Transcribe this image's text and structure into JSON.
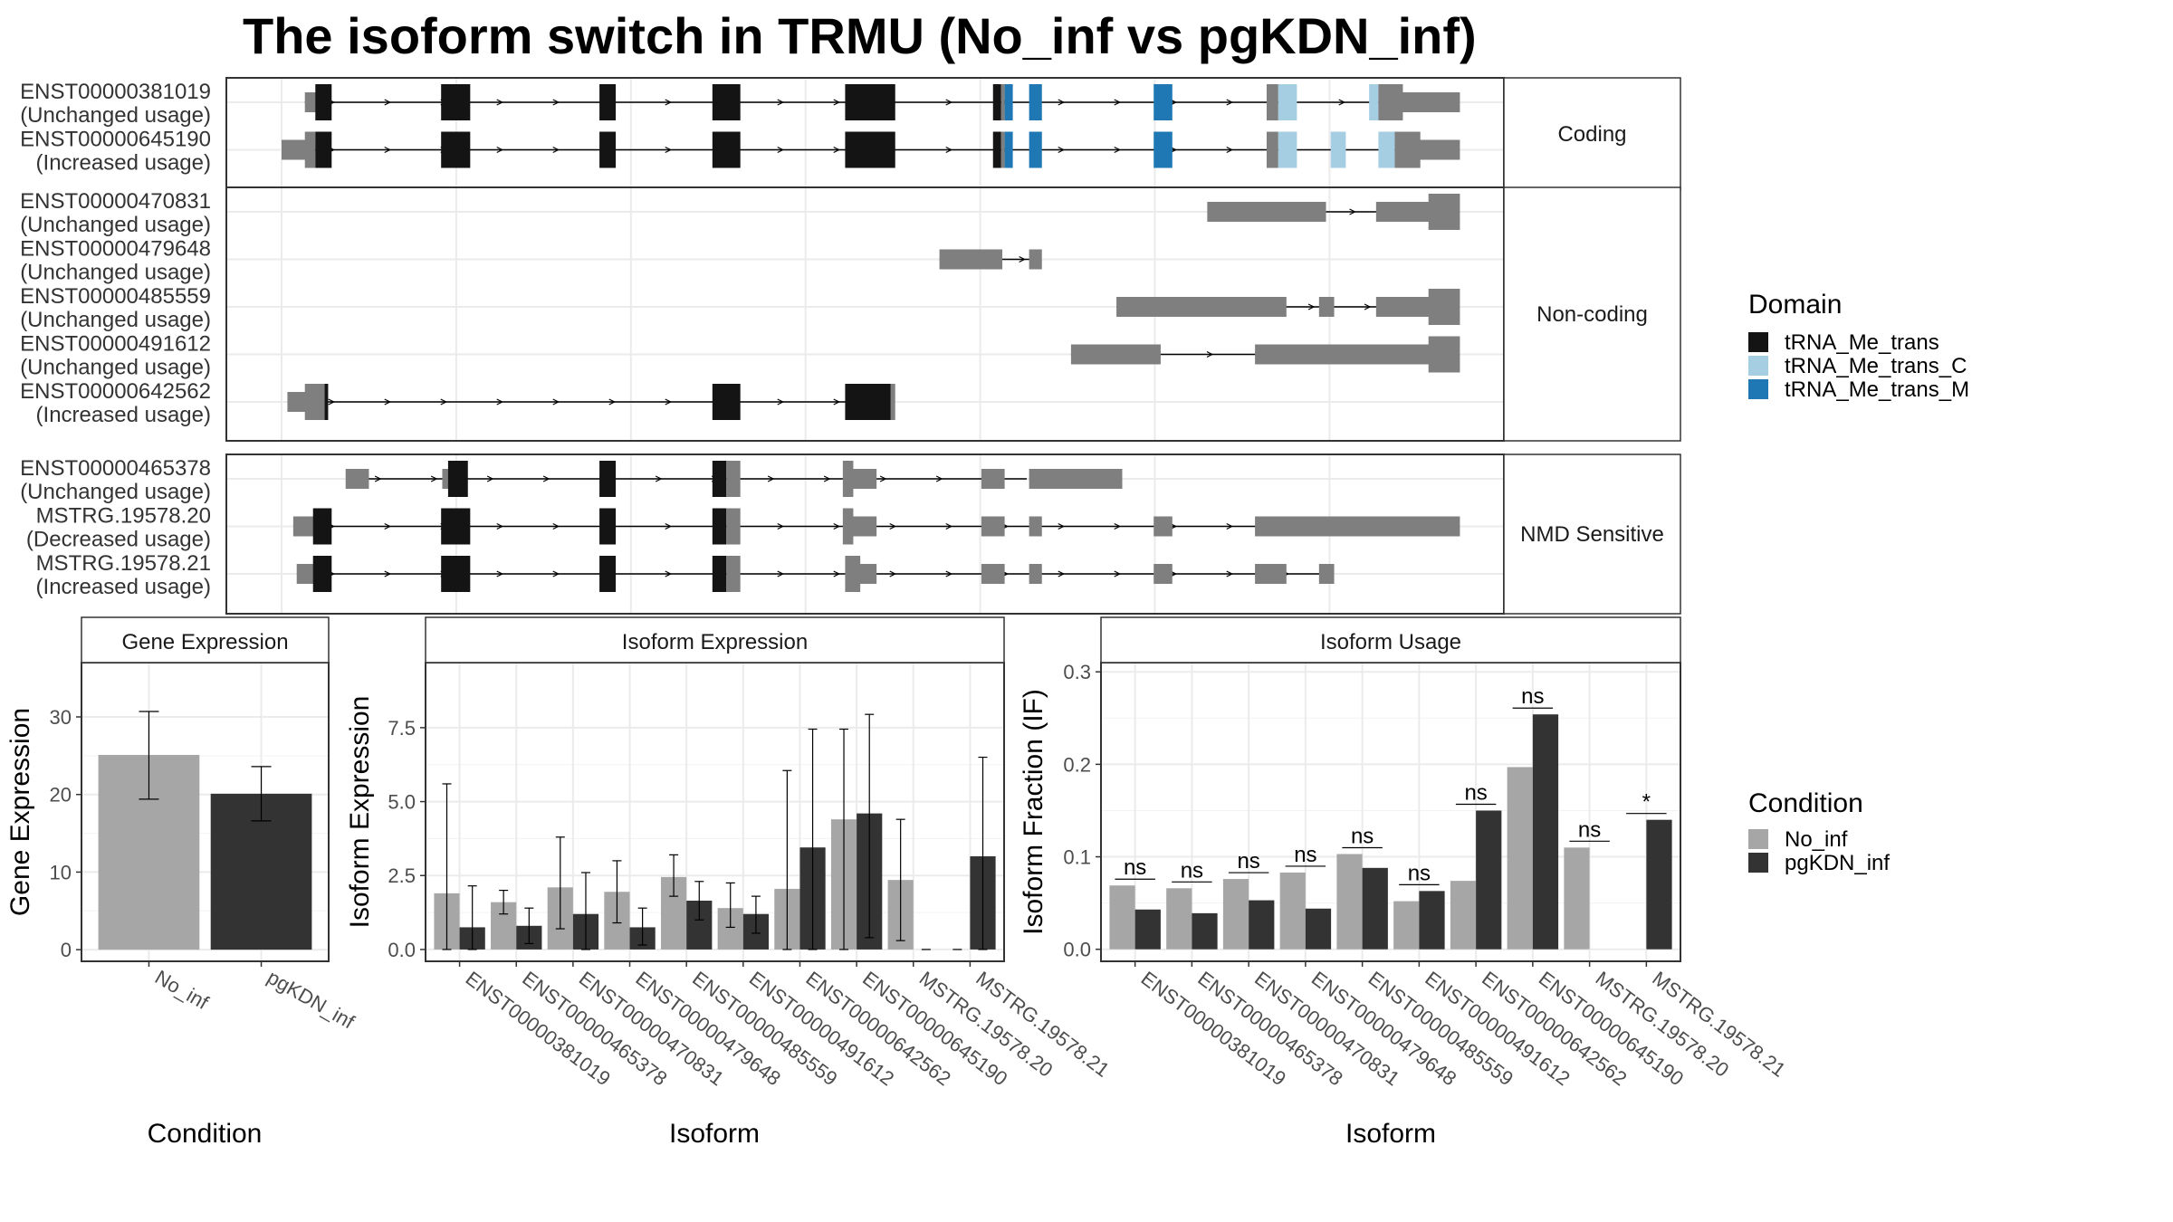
{
  "title": "The isoform switch in TRMU (No_inf vs pgKDN_inf)",
  "colors": {
    "utr": "#7f7f7f",
    "tRNA_Me_trans": "#141414",
    "tRNA_Me_trans_C": "#a6cee3",
    "tRNA_Me_trans_M": "#1f78b4",
    "No_inf": "#a6a6a6",
    "pgKDN_inf": "#333333"
  },
  "structure": {
    "x_range": [
      0,
      1000
    ],
    "groups": [
      {
        "label": "Coding",
        "tracks": [
          {
            "id": "ENST00000381019",
            "status": "(Unchanged usage)",
            "intron": [
              20,
              988
            ],
            "exons": [
              {
                "s": 20,
                "e": 40,
                "h": "s",
                "k": "utr"
              },
              {
                "s": 29,
                "e": 43,
                "h": "l",
                "k": "tRNA_Me_trans"
              },
              {
                "s": 137,
                "e": 162,
                "h": "l",
                "k": "tRNA_Me_trans"
              },
              {
                "s": 273,
                "e": 287,
                "h": "l",
                "k": "tRNA_Me_trans"
              },
              {
                "s": 370,
                "e": 394,
                "h": "l",
                "k": "tRNA_Me_trans"
              },
              {
                "s": 484,
                "e": 527,
                "h": "l",
                "k": "tRNA_Me_trans"
              },
              {
                "s": 611,
                "e": 618,
                "h": "l",
                "k": "tRNA_Me_trans"
              },
              {
                "s": 618,
                "e": 621,
                "h": "l",
                "k": "utr"
              },
              {
                "s": 621,
                "e": 628,
                "h": "l",
                "k": "tRNA_Me_trans_M"
              },
              {
                "s": 642,
                "e": 653,
                "h": "l",
                "k": "tRNA_Me_trans_M"
              },
              {
                "s": 749,
                "e": 765,
                "h": "l",
                "k": "tRNA_Me_trans_M"
              },
              {
                "s": 846,
                "e": 856,
                "h": "l",
                "k": "utr"
              },
              {
                "s": 856,
                "e": 872,
                "h": "l",
                "k": "tRNA_Me_trans_C"
              },
              {
                "s": 934,
                "e": 942,
                "h": "l",
                "k": "tRNA_Me_trans_C"
              },
              {
                "s": 942,
                "e": 963,
                "h": "l",
                "k": "utr"
              },
              {
                "s": 962,
                "e": 1012,
                "h": "s",
                "k": "utr"
              }
            ]
          },
          {
            "id": "ENST00000645190",
            "status": "(Increased usage)",
            "intron": [
              20,
              988
            ],
            "exons": [
              {
                "s": 0,
                "e": 28,
                "h": "s",
                "k": "utr"
              },
              {
                "s": 20,
                "e": 29,
                "h": "l",
                "k": "utr"
              },
              {
                "s": 29,
                "e": 43,
                "h": "l",
                "k": "tRNA_Me_trans"
              },
              {
                "s": 137,
                "e": 162,
                "h": "l",
                "k": "tRNA_Me_trans"
              },
              {
                "s": 273,
                "e": 287,
                "h": "l",
                "k": "tRNA_Me_trans"
              },
              {
                "s": 370,
                "e": 394,
                "h": "l",
                "k": "tRNA_Me_trans"
              },
              {
                "s": 484,
                "e": 527,
                "h": "l",
                "k": "tRNA_Me_trans"
              },
              {
                "s": 611,
                "e": 618,
                "h": "l",
                "k": "tRNA_Me_trans"
              },
              {
                "s": 618,
                "e": 621,
                "h": "l",
                "k": "utr"
              },
              {
                "s": 621,
                "e": 628,
                "h": "l",
                "k": "tRNA_Me_trans_M"
              },
              {
                "s": 642,
                "e": 653,
                "h": "l",
                "k": "tRNA_Me_trans_M"
              },
              {
                "s": 749,
                "e": 765,
                "h": "l",
                "k": "tRNA_Me_trans_M"
              },
              {
                "s": 846,
                "e": 856,
                "h": "l",
                "k": "utr"
              },
              {
                "s": 856,
                "e": 872,
                "h": "l",
                "k": "tRNA_Me_trans_C"
              },
              {
                "s": 901,
                "e": 914,
                "h": "l",
                "k": "tRNA_Me_trans_C"
              },
              {
                "s": 942,
                "e": 956,
                "h": "l",
                "k": "tRNA_Me_trans_C"
              },
              {
                "s": 956,
                "e": 978,
                "h": "l",
                "k": "utr"
              },
              {
                "s": 977,
                "e": 1012,
                "h": "s",
                "k": "utr"
              }
            ]
          }
        ]
      },
      {
        "label": "Non-coding",
        "tracks": [
          {
            "id": "ENST00000470831",
            "status": "(Unchanged usage)",
            "intron": [
              897,
              988
            ],
            "exons": [
              {
                "s": 795,
                "e": 897,
                "h": "s",
                "k": "utr"
              },
              {
                "s": 940,
                "e": 993,
                "h": "s",
                "k": "utr"
              },
              {
                "s": 985,
                "e": 1012,
                "h": "l",
                "k": "utr"
              }
            ]
          },
          {
            "id": "ENST00000479648",
            "status": "(Unchanged usage)",
            "intron": [
              565,
              645
            ],
            "exons": [
              {
                "s": 565,
                "e": 619,
                "h": "s",
                "k": "utr"
              },
              {
                "s": 642,
                "e": 653,
                "h": "s",
                "k": "utr"
              }
            ]
          },
          {
            "id": "ENST00000485559",
            "status": "(Unchanged usage)",
            "intron": [
              717,
              988
            ],
            "exons": [
              {
                "s": 717,
                "e": 863,
                "h": "s",
                "k": "utr"
              },
              {
                "s": 891,
                "e": 904,
                "h": "s",
                "k": "utr"
              },
              {
                "s": 940,
                "e": 993,
                "h": "s",
                "k": "utr"
              },
              {
                "s": 985,
                "e": 1012,
                "h": "l",
                "k": "utr"
              }
            ]
          },
          {
            "id": "ENST00000491612",
            "status": "(Unchanged usage)",
            "intron": [
              678,
              988
            ],
            "exons": [
              {
                "s": 678,
                "e": 755,
                "h": "s",
                "k": "utr"
              },
              {
                "s": 836,
                "e": 993,
                "h": "s",
                "k": "utr"
              },
              {
                "s": 985,
                "e": 1012,
                "h": "l",
                "k": "utr"
              }
            ]
          },
          {
            "id": "ENST00000642562",
            "status": "(Increased usage)",
            "intron": [
              20,
              510
            ],
            "exons": [
              {
                "s": 5,
                "e": 25,
                "h": "s",
                "k": "utr"
              },
              {
                "s": 20,
                "e": 38,
                "h": "l",
                "k": "utr"
              },
              {
                "s": 37,
                "e": 40,
                "h": "l",
                "k": "tRNA_Me_trans"
              },
              {
                "s": 370,
                "e": 394,
                "h": "l",
                "k": "tRNA_Me_trans"
              },
              {
                "s": 484,
                "e": 524,
                "h": "l",
                "k": "tRNA_Me_trans"
              },
              {
                "s": 523,
                "e": 527,
                "h": "l",
                "k": "utr"
              }
            ]
          }
        ]
      },
      {
        "label": "NMD Sensitive",
        "tracks": [
          {
            "id": "ENST00000465378",
            "status": "(Unchanged usage)",
            "intron": [
              60,
              640
            ],
            "exons": [
              {
                "s": 55,
                "e": 75,
                "h": "s",
                "k": "utr"
              },
              {
                "s": 138,
                "e": 147,
                "h": "s",
                "k": "utr"
              },
              {
                "s": 143,
                "e": 160,
                "h": "l",
                "k": "tRNA_Me_trans"
              },
              {
                "s": 273,
                "e": 287,
                "h": "l",
                "k": "tRNA_Me_trans"
              },
              {
                "s": 370,
                "e": 382,
                "h": "l",
                "k": "tRNA_Me_trans"
              },
              {
                "s": 382,
                "e": 394,
                "h": "l",
                "k": "utr"
              },
              {
                "s": 482,
                "e": 491,
                "h": "l",
                "k": "utr"
              },
              {
                "s": 489,
                "e": 511,
                "h": "s",
                "k": "utr"
              },
              {
                "s": 601,
                "e": 621,
                "h": "s",
                "k": "utr"
              },
              {
                "s": 642,
                "e": 722,
                "h": "s",
                "k": "utr"
              }
            ]
          },
          {
            "id": "MSTRG.19578.20",
            "status": "(Decreased usage)",
            "intron": [
              20,
              988
            ],
            "exons": [
              {
                "s": 10,
                "e": 35,
                "h": "s",
                "k": "utr"
              },
              {
                "s": 27,
                "e": 43,
                "h": "l",
                "k": "tRNA_Me_trans"
              },
              {
                "s": 137,
                "e": 162,
                "h": "l",
                "k": "tRNA_Me_trans"
              },
              {
                "s": 273,
                "e": 287,
                "h": "l",
                "k": "tRNA_Me_trans"
              },
              {
                "s": 370,
                "e": 382,
                "h": "l",
                "k": "tRNA_Me_trans"
              },
              {
                "s": 382,
                "e": 394,
                "h": "l",
                "k": "utr"
              },
              {
                "s": 482,
                "e": 491,
                "h": "l",
                "k": "utr"
              },
              {
                "s": 489,
                "e": 511,
                "h": "s",
                "k": "utr"
              },
              {
                "s": 601,
                "e": 621,
                "h": "s",
                "k": "utr"
              },
              {
                "s": 642,
                "e": 653,
                "h": "s",
                "k": "utr"
              },
              {
                "s": 749,
                "e": 765,
                "h": "s",
                "k": "utr"
              },
              {
                "s": 836,
                "e": 1012,
                "h": "s",
                "k": "utr"
              }
            ]
          },
          {
            "id": "MSTRG.19578.21",
            "status": "(Increased usage)",
            "intron": [
              20,
              895
            ],
            "exons": [
              {
                "s": 13,
                "e": 35,
                "h": "s",
                "k": "utr"
              },
              {
                "s": 27,
                "e": 43,
                "h": "l",
                "k": "tRNA_Me_trans"
              },
              {
                "s": 137,
                "e": 162,
                "h": "l",
                "k": "tRNA_Me_trans"
              },
              {
                "s": 273,
                "e": 287,
                "h": "l",
                "k": "tRNA_Me_trans"
              },
              {
                "s": 370,
                "e": 382,
                "h": "l",
                "k": "tRNA_Me_trans"
              },
              {
                "s": 382,
                "e": 394,
                "h": "l",
                "k": "utr"
              },
              {
                "s": 484,
                "e": 497,
                "h": "l",
                "k": "utr"
              },
              {
                "s": 495,
                "e": 511,
                "h": "s",
                "k": "utr"
              },
              {
                "s": 601,
                "e": 621,
                "h": "s",
                "k": "utr"
              },
              {
                "s": 642,
                "e": 653,
                "h": "s",
                "k": "utr"
              },
              {
                "s": 749,
                "e": 765,
                "h": "s",
                "k": "utr"
              },
              {
                "s": 836,
                "e": 863,
                "h": "s",
                "k": "utr"
              },
              {
                "s": 891,
                "e": 904,
                "h": "s",
                "k": "utr"
              }
            ]
          }
        ]
      }
    ]
  },
  "legend_domain": {
    "title": "Domain",
    "items": [
      {
        "label": "tRNA_Me_trans",
        "color": "#141414"
      },
      {
        "label": "tRNA_Me_trans_C",
        "color": "#a6cee3"
      },
      {
        "label": "tRNA_Me_trans_M",
        "color": "#1f78b4"
      }
    ]
  },
  "legend_condition": {
    "title": "Condition",
    "items": [
      {
        "label": "No_inf",
        "color": "#a6a6a6"
      },
      {
        "label": "pgKDN_inf",
        "color": "#333333"
      }
    ]
  },
  "chart_data": [
    {
      "type": "bar",
      "title": "Gene Expression",
      "categories": [
        "No_inf",
        "pgKDN_inf"
      ],
      "values": [
        25.1,
        20.1
      ],
      "err_low": [
        19.4,
        16.6
      ],
      "err_high": [
        30.7,
        23.6
      ],
      "xlabel": "Condition",
      "ylabel": "Gene Expression",
      "ylim": [
        -1.5,
        37
      ],
      "yticks": [
        0,
        10,
        20,
        30
      ],
      "ytick_labels": [
        "0",
        "10",
        "20",
        "30"
      ],
      "grid": true
    },
    {
      "type": "bar",
      "title": "Isoform Expression",
      "categories": [
        "ENST00000381019",
        "ENST00000465378",
        "ENST00000470831",
        "ENST00000479648",
        "ENST00000485559",
        "ENST00000491612",
        "ENST00000642562",
        "ENST00000645190",
        "MSTRG.19578.20",
        "MSTRG.19578.21"
      ],
      "series": [
        {
          "name": "No_inf",
          "values": [
            1.9,
            1.6,
            2.1,
            1.95,
            2.45,
            1.4,
            2.05,
            4.4,
            2.35,
            0.0
          ],
          "err_low": [
            0.0,
            1.2,
            0.7,
            0.9,
            1.8,
            0.75,
            0.0,
            0.0,
            0.3,
            0.0
          ],
          "err_high": [
            5.6,
            2.0,
            3.8,
            3.0,
            3.2,
            2.25,
            6.05,
            7.45,
            4.4,
            0.0
          ]
        },
        {
          "name": "pgKDN_inf",
          "values": [
            0.75,
            0.8,
            1.2,
            0.75,
            1.65,
            1.2,
            3.45,
            4.6,
            0.0,
            3.15
          ],
          "err_low": [
            0.0,
            0.2,
            0.0,
            0.15,
            1.0,
            0.55,
            0.0,
            0.4,
            0.0,
            0.0
          ],
          "err_high": [
            2.15,
            1.4,
            2.6,
            1.4,
            2.3,
            1.8,
            7.45,
            7.95,
            0.0,
            6.5
          ]
        }
      ],
      "xlabel": "Isoform",
      "ylabel": "Isoform Expression",
      "ylim": [
        -0.4,
        9.7
      ],
      "yticks": [
        0,
        2.5,
        5,
        7.5
      ],
      "ytick_labels": [
        "0.0",
        "2.5",
        "5.0",
        "7.5"
      ],
      "grid": true
    },
    {
      "type": "bar",
      "title": "Isoform Usage",
      "categories": [
        "ENST00000381019",
        "ENST00000465378",
        "ENST00000470831",
        "ENST00000479648",
        "ENST00000485559",
        "ENST00000491612",
        "ENST00000642562",
        "ENST00000645190",
        "MSTRG.19578.20",
        "MSTRG.19578.21"
      ],
      "series": [
        {
          "name": "No_inf",
          "values": [
            0.069,
            0.066,
            0.076,
            0.083,
            0.103,
            0.052,
            0.074,
            0.197,
            0.11,
            0.0
          ]
        },
        {
          "name": "pgKDN_inf",
          "values": [
            0.043,
            0.039,
            0.053,
            0.044,
            0.088,
            0.063,
            0.15,
            0.254,
            0.0,
            0.14
          ]
        }
      ],
      "significance": [
        "ns",
        "ns",
        "ns",
        "ns",
        "ns",
        "ns",
        "ns",
        "ns",
        "ns",
        "*"
      ],
      "xlabel": "Isoform",
      "ylabel": "Isoform Fraction (IF)",
      "ylim": [
        -0.013,
        0.31
      ],
      "yticks": [
        0,
        0.1,
        0.2,
        0.3
      ],
      "ytick_labels": [
        "0.0",
        "0.1",
        "0.2",
        "0.3"
      ],
      "grid": true
    }
  ]
}
